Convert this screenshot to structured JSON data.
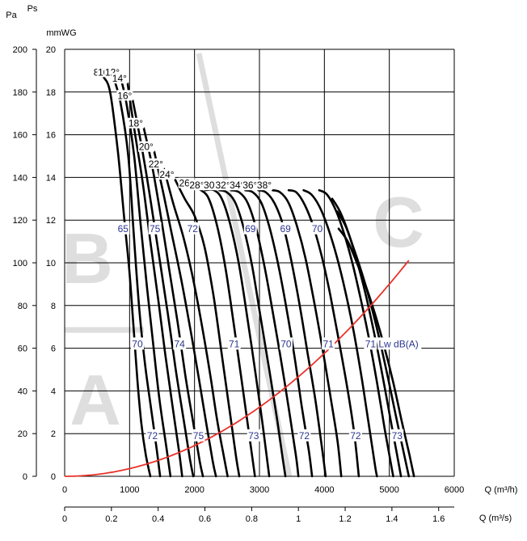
{
  "chart_data": {
    "type": "line",
    "axes": {
      "left_unit_pa": "Pa",
      "left_unit_ps": "Ps",
      "right_unit": "mmWG",
      "x_primary_label": "Q (m³/h)",
      "x_secondary_label": "Q (m³/s)",
      "pa_ticks": [
        "0",
        "20",
        "40",
        "60",
        "80",
        "100",
        "120",
        "140",
        "160",
        "180",
        "200"
      ],
      "mmwg_ticks": [
        "0",
        "2",
        "4",
        "6",
        "8",
        "10",
        "12",
        "14",
        "16",
        "18",
        "20"
      ],
      "x_primary_ticks": [
        "0",
        "1000",
        "2000",
        "3000",
        "4000",
        "5000",
        "6000"
      ],
      "x_secondary_ticks": [
        "0",
        "0.2",
        "0.4",
        "0.6",
        "0.8",
        "1",
        "1.2",
        "1.4",
        "1.6"
      ],
      "xlim_m3h": [
        0,
        6000
      ],
      "ylim_pa": [
        0,
        200
      ],
      "grid": true
    },
    "zones": [
      "A",
      "B",
      "C"
    ],
    "system_curve": {
      "label": "Lw dB(A)",
      "color": "#e8322a",
      "k_pa_per_m3h2": 3.6e-06,
      "x_max": 5300
    },
    "blade_angles": [
      {
        "label": "8°",
        "points": [
          [
            600,
            187
          ],
          [
            700,
            180
          ],
          [
            820,
            152
          ],
          [
            920,
            120
          ],
          [
            1000,
            95
          ],
          [
            1060,
            70
          ],
          [
            1120,
            45
          ],
          [
            1180,
            25
          ],
          [
            1250,
            10
          ],
          [
            1320,
            0
          ]
        ]
      },
      {
        "label": "10°",
        "points": [
          [
            750,
            187
          ],
          [
            860,
            175
          ],
          [
            980,
            150
          ],
          [
            1060,
            115
          ],
          [
            1150,
            78
          ],
          [
            1240,
            52
          ],
          [
            1330,
            32
          ],
          [
            1420,
            12
          ],
          [
            1470,
            0
          ]
        ]
      },
      {
        "label": "12°",
        "points": [
          [
            860,
            187
          ],
          [
            950,
            175
          ],
          [
            1070,
            150
          ],
          [
            1170,
            118
          ],
          [
            1270,
            88
          ],
          [
            1370,
            60
          ],
          [
            1460,
            36
          ],
          [
            1560,
            15
          ],
          [
            1630,
            0
          ]
        ]
      },
      {
        "label": "14°",
        "points": [
          [
            970,
            184
          ],
          [
            1060,
            165
          ],
          [
            1200,
            138
          ],
          [
            1320,
            110
          ],
          [
            1440,
            83
          ],
          [
            1550,
            57
          ],
          [
            1660,
            33
          ],
          [
            1760,
            12
          ],
          [
            1810,
            0
          ]
        ]
      },
      {
        "label": "16°",
        "points": [
          [
            1050,
            176
          ],
          [
            1200,
            152
          ],
          [
            1330,
            128
          ],
          [
            1460,
            102
          ],
          [
            1590,
            76
          ],
          [
            1710,
            50
          ],
          [
            1830,
            27
          ],
          [
            1930,
            8
          ],
          [
            1980,
            0
          ]
        ]
      },
      {
        "label": "18°",
        "points": [
          [
            1220,
            163
          ],
          [
            1350,
            145
          ],
          [
            1480,
            122
          ],
          [
            1610,
            97
          ],
          [
            1740,
            72
          ],
          [
            1860,
            47
          ],
          [
            1980,
            25
          ],
          [
            2080,
            7
          ],
          [
            2130,
            0
          ]
        ]
      },
      {
        "label": "20°",
        "points": [
          [
            1380,
            152
          ],
          [
            1510,
            134
          ],
          [
            1640,
            115
          ],
          [
            1790,
            93
          ],
          [
            1930,
            70
          ],
          [
            2060,
            47
          ],
          [
            2180,
            25
          ],
          [
            2280,
            7
          ],
          [
            2330,
            0
          ]
        ]
      },
      {
        "label": "22°",
        "points": [
          [
            1530,
            144
          ],
          [
            1670,
            128
          ],
          [
            1820,
            113
          ],
          [
            1960,
            95
          ],
          [
            2100,
            73
          ],
          [
            2240,
            48
          ],
          [
            2350,
            26
          ],
          [
            2460,
            8
          ],
          [
            2510,
            0
          ]
        ]
      },
      {
        "label": "24°",
        "points": [
          [
            1700,
            139
          ],
          [
            1850,
            130
          ],
          [
            2000,
            122
          ],
          [
            2150,
            108
          ],
          [
            2290,
            85
          ],
          [
            2420,
            57
          ],
          [
            2540,
            31
          ],
          [
            2640,
            9
          ],
          [
            2690,
            0
          ]
        ]
      },
      {
        "label": "26°",
        "points": [
          [
            2000,
            135
          ],
          [
            2100,
            134
          ],
          [
            2220,
            130
          ],
          [
            2350,
            117
          ],
          [
            2480,
            97
          ],
          [
            2610,
            70
          ],
          [
            2730,
            44
          ],
          [
            2840,
            20
          ],
          [
            2930,
            0
          ]
        ]
      },
      {
        "label": "28°",
        "points": [
          [
            2160,
            134
          ],
          [
            2300,
            134
          ],
          [
            2420,
            130
          ],
          [
            2550,
            118
          ],
          [
            2680,
            100
          ],
          [
            2810,
            75
          ],
          [
            2940,
            48
          ],
          [
            3050,
            24
          ],
          [
            3150,
            0
          ]
        ]
      },
      {
        "label": "30°",
        "points": [
          [
            2380,
            134
          ],
          [
            2500,
            133
          ],
          [
            2630,
            128
          ],
          [
            2760,
            116
          ],
          [
            2890,
            98
          ],
          [
            3020,
            74
          ],
          [
            3150,
            50
          ],
          [
            3270,
            27
          ],
          [
            3360,
            8
          ],
          [
            3400,
            0
          ]
        ]
      },
      {
        "label": "32°",
        "points": [
          [
            2560,
            134
          ],
          [
            2690,
            133
          ],
          [
            2820,
            128
          ],
          [
            2950,
            116
          ],
          [
            3080,
            98
          ],
          [
            3210,
            76
          ],
          [
            3340,
            53
          ],
          [
            3460,
            30
          ],
          [
            3560,
            10
          ],
          [
            3600,
            0
          ]
        ]
      },
      {
        "label": "34°",
        "points": [
          [
            2780,
            134
          ],
          [
            2900,
            133
          ],
          [
            3030,
            128
          ],
          [
            3160,
            116
          ],
          [
            3290,
            99
          ],
          [
            3420,
            78
          ],
          [
            3540,
            56
          ],
          [
            3650,
            33
          ],
          [
            3760,
            12
          ],
          [
            3810,
            0
          ]
        ]
      },
      {
        "label": "36°",
        "points": [
          [
            2980,
            134
          ],
          [
            3100,
            133
          ],
          [
            3230,
            128
          ],
          [
            3360,
            118
          ],
          [
            3490,
            101
          ],
          [
            3620,
            80
          ],
          [
            3740,
            58
          ],
          [
            3860,
            36
          ],
          [
            3960,
            14
          ],
          [
            4020,
            0
          ]
        ]
      },
      {
        "label": "38°",
        "points": [
          [
            3200,
            134
          ],
          [
            3320,
            133
          ],
          [
            3450,
            128
          ],
          [
            3580,
            117
          ],
          [
            3710,
            102
          ],
          [
            3840,
            82
          ],
          [
            3970,
            60
          ],
          [
            4090,
            38
          ],
          [
            4200,
            17
          ],
          [
            4260,
            0
          ]
        ]
      },
      {
        "points": [
          [
            3450,
            134
          ],
          [
            3570,
            133
          ],
          [
            3700,
            127
          ],
          [
            3830,
            117
          ],
          [
            3960,
            103
          ],
          [
            4090,
            85
          ],
          [
            4220,
            64
          ],
          [
            4350,
            42
          ],
          [
            4460,
            20
          ],
          [
            4530,
            0
          ]
        ]
      },
      {
        "points": [
          [
            3680,
            134
          ],
          [
            3800,
            132
          ],
          [
            3930,
            126
          ],
          [
            4060,
            116
          ],
          [
            4190,
            103
          ],
          [
            4320,
            87
          ],
          [
            4450,
            68
          ],
          [
            4570,
            47
          ],
          [
            4680,
            25
          ],
          [
            4780,
            5
          ],
          [
            4810,
            0
          ]
        ]
      },
      {
        "points": [
          [
            3920,
            134
          ],
          [
            4040,
            132
          ],
          [
            4170,
            125
          ],
          [
            4300,
            114
          ],
          [
            4430,
            100
          ],
          [
            4560,
            83
          ],
          [
            4690,
            64
          ],
          [
            4810,
            44
          ],
          [
            4930,
            22
          ],
          [
            5030,
            5
          ],
          [
            5060,
            0
          ]
        ]
      },
      {
        "points": [
          [
            4120,
            130
          ],
          [
            4240,
            124
          ],
          [
            4370,
            114
          ],
          [
            4500,
            101
          ],
          [
            4630,
            86
          ],
          [
            4760,
            68
          ],
          [
            4890,
            48
          ],
          [
            5010,
            28
          ],
          [
            5120,
            10
          ],
          [
            5180,
            0
          ]
        ]
      },
      {
        "points": [
          [
            4200,
            124
          ],
          [
            4330,
            117
          ],
          [
            4460,
            106
          ],
          [
            4590,
            94
          ],
          [
            4720,
            80
          ],
          [
            4850,
            64
          ],
          [
            4980,
            46
          ],
          [
            5110,
            27
          ],
          [
            5230,
            10
          ],
          [
            5300,
            0
          ]
        ]
      },
      {
        "points": [
          [
            4220,
            116
          ],
          [
            4360,
            110
          ],
          [
            4500,
            100
          ],
          [
            4640,
            89
          ],
          [
            4780,
            76
          ],
          [
            4920,
            61
          ],
          [
            5060,
            44
          ],
          [
            5190,
            26
          ],
          [
            5310,
            10
          ],
          [
            5380,
            0
          ]
        ]
      }
    ],
    "noise_labels": [
      {
        "text": "65",
        "q": 900,
        "pa": 116
      },
      {
        "text": "75",
        "q": 1390,
        "pa": 116
      },
      {
        "text": "72",
        "q": 1970,
        "pa": 116
      },
      {
        "text": "69",
        "q": 2860,
        "pa": 116
      },
      {
        "text": "69",
        "q": 3400,
        "pa": 116
      },
      {
        "text": "70",
        "q": 3890,
        "pa": 116
      },
      {
        "text": "70",
        "q": 1120,
        "pa": 62
      },
      {
        "text": "74",
        "q": 1770,
        "pa": 62
      },
      {
        "text": "71",
        "q": 2610,
        "pa": 62
      },
      {
        "text": "70",
        "q": 3410,
        "pa": 62
      },
      {
        "text": "71",
        "q": 4060,
        "pa": 62
      },
      {
        "text": "71",
        "q": 4710,
        "pa": 62
      },
      {
        "text": "72",
        "q": 1350,
        "pa": 19
      },
      {
        "text": "75",
        "q": 2060,
        "pa": 19
      },
      {
        "text": "73",
        "q": 2910,
        "pa": 19
      },
      {
        "text": "72",
        "q": 3690,
        "pa": 19
      },
      {
        "text": "72",
        "q": 4480,
        "pa": 19
      },
      {
        "text": "73",
        "q": 5120,
        "pa": 19
      }
    ]
  }
}
